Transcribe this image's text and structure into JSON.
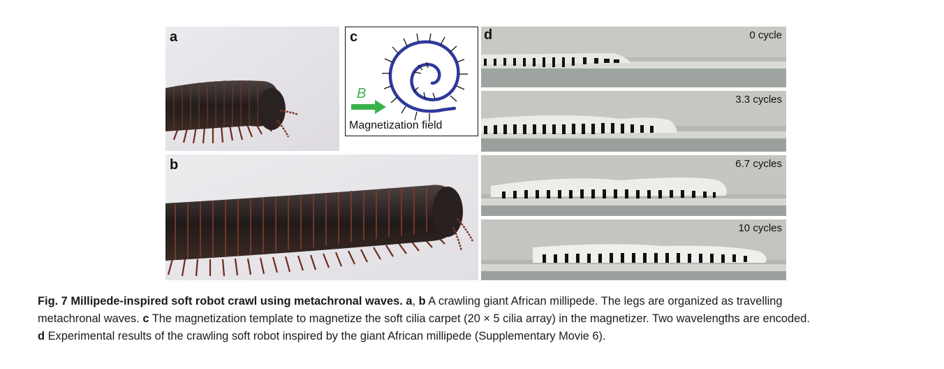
{
  "figure": {
    "panels": {
      "a": {
        "letter": "a"
      },
      "b": {
        "letter": "b"
      },
      "c": {
        "letter": "c",
        "field_symbol": "B",
        "field_label": "Magnetization field"
      },
      "d": {
        "letter": "d",
        "frames": [
          {
            "cycle_label": "0 cycle"
          },
          {
            "cycle_label": "3.3 cycles"
          },
          {
            "cycle_label": "6.7 cycles"
          },
          {
            "cycle_label": "10 cycles"
          }
        ]
      }
    },
    "caption": {
      "fig_label": "Fig. 7",
      "title": "Millipede-inspired soft robot crawl using metachronal waves.",
      "ref_a": "a",
      "sep_ab": ",",
      "ref_b": "b",
      "text_ab_1": "A crawling giant African millipede. The legs are organized as travelling",
      "text_ab_2": "metachronal waves.",
      "ref_c": "c",
      "text_c": "The magnetization template to magnetize the soft cilia carpet (20 × 5 cilia array) in the magnetizer. Two wavelengths are encoded.",
      "ref_d": "d",
      "text_d": "Experimental results of the crawling soft robot inspired by the giant African millipede (Supplementary Movie 6)."
    },
    "colors": {
      "spiral": "#2e3a9a",
      "arrow": "#3ab24a",
      "millipede_body": "#2a2422",
      "millipede_legs": "#6b2a1c",
      "background_photo": "#e9e7ea"
    }
  }
}
